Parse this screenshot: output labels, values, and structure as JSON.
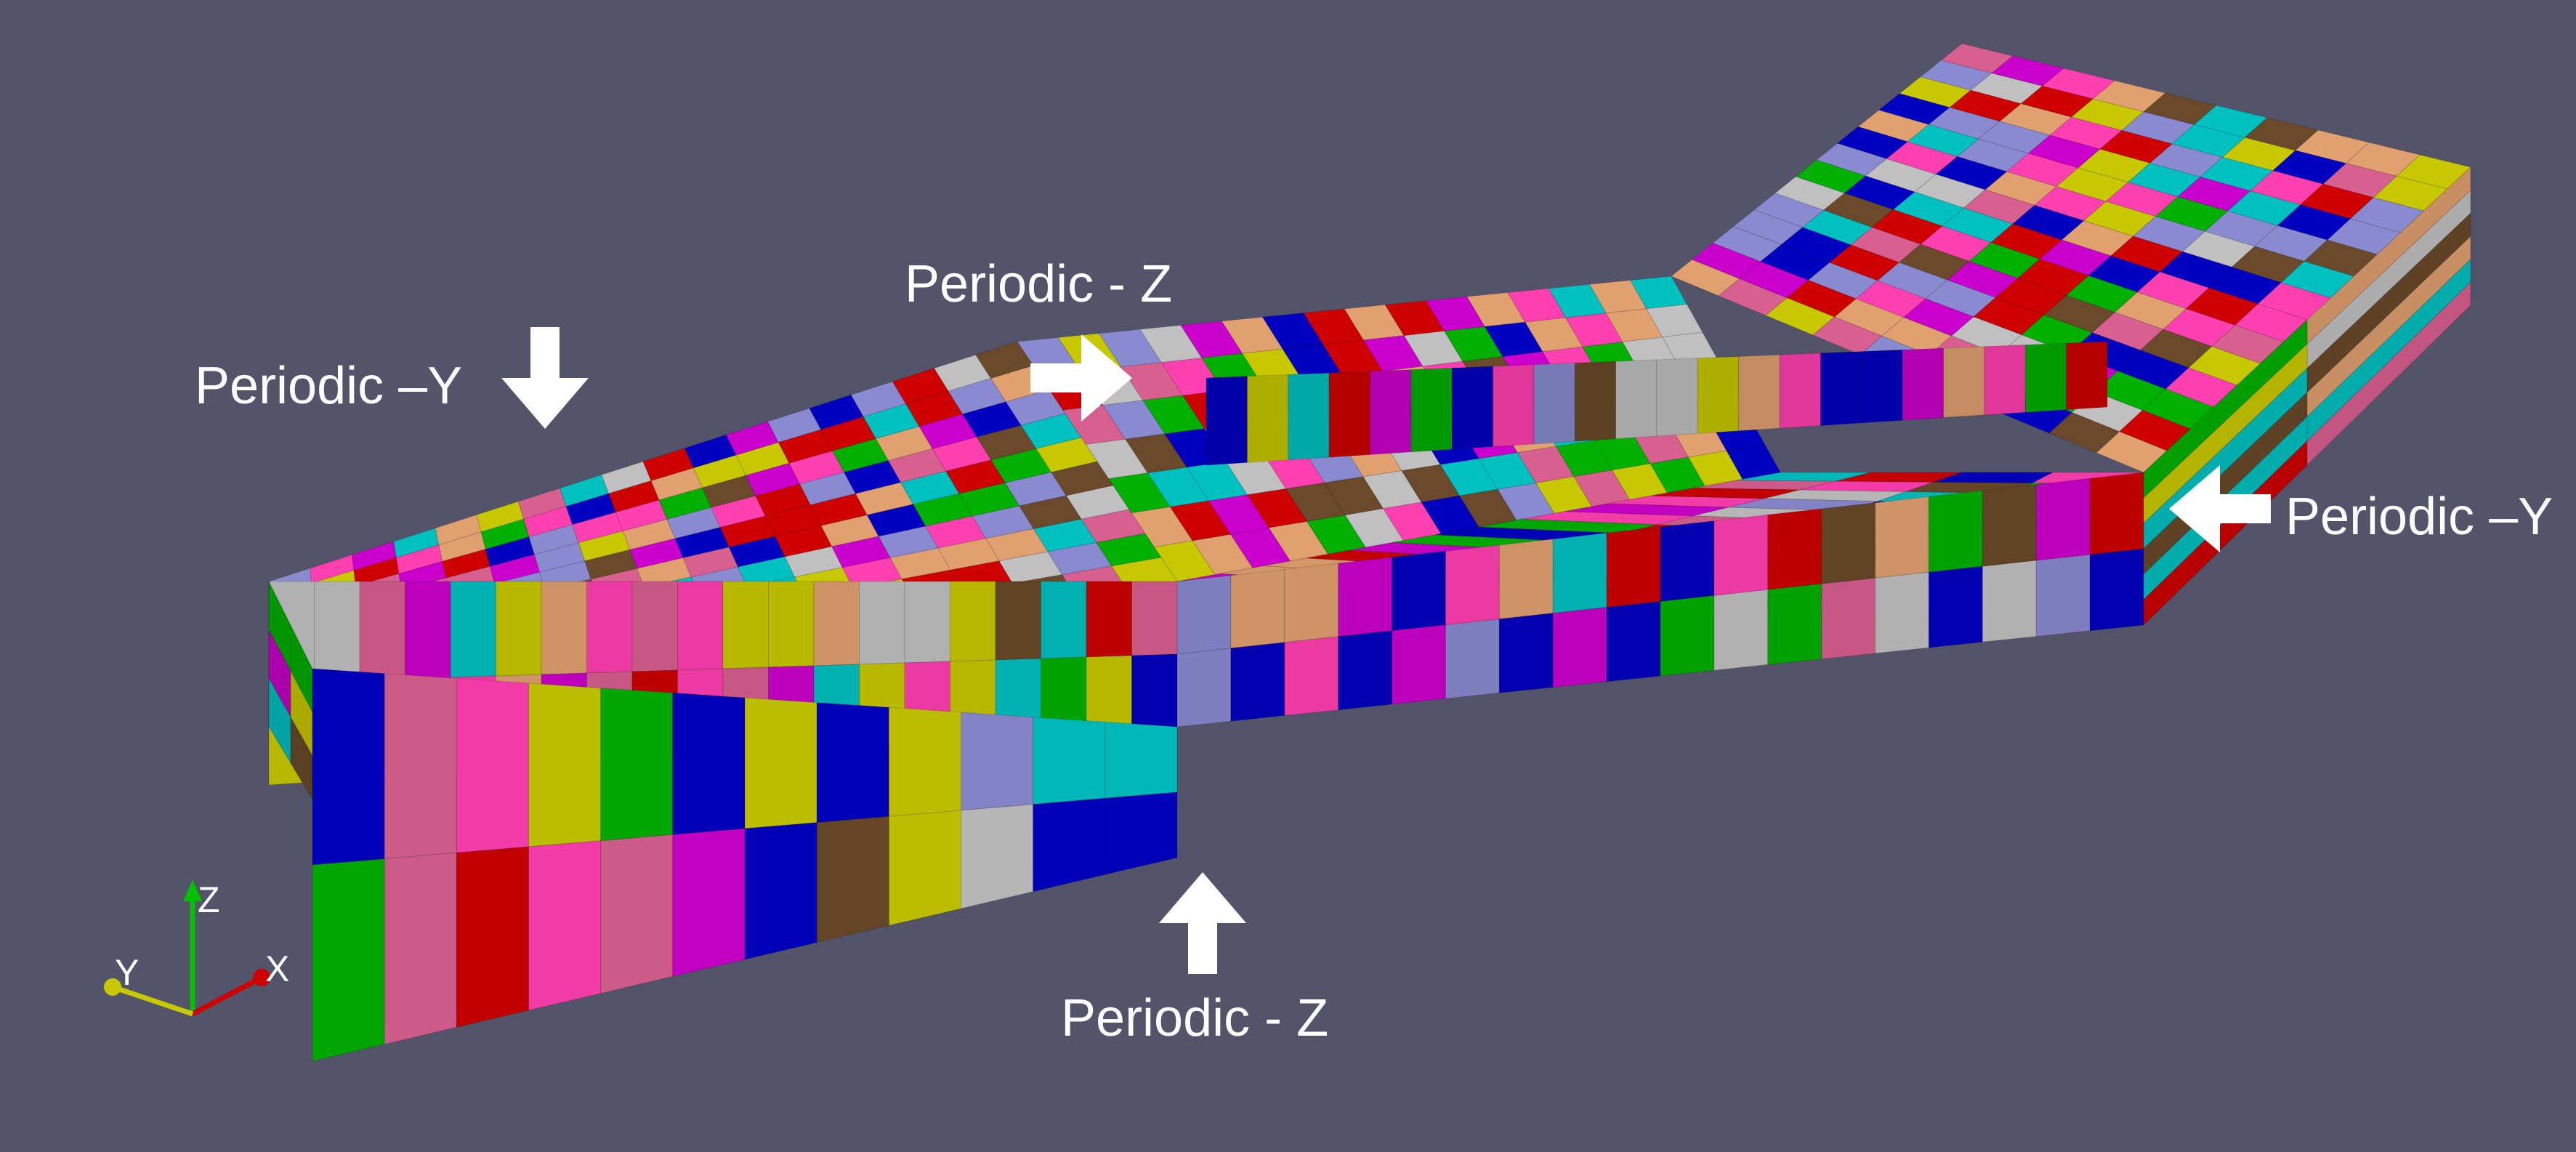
{
  "labels": {
    "top_z": "Periodic - Z",
    "left_y": "Periodic –Y",
    "right_y": "Periodic –Y",
    "bottom_z": "Periodic - Z"
  },
  "axes": {
    "x": "X",
    "y": "Y",
    "z": "Z"
  },
  "colors": {
    "background": "#535369",
    "palette": [
      "#ce0000",
      "#0000c0",
      "#cc00cc",
      "#ff40b0",
      "#e0a070",
      "#8a8ad0",
      "#c0c0c0",
      "#00b000",
      "#00c0c0",
      "#c8c800",
      "#6a4a2a",
      "#d86090"
    ]
  }
}
